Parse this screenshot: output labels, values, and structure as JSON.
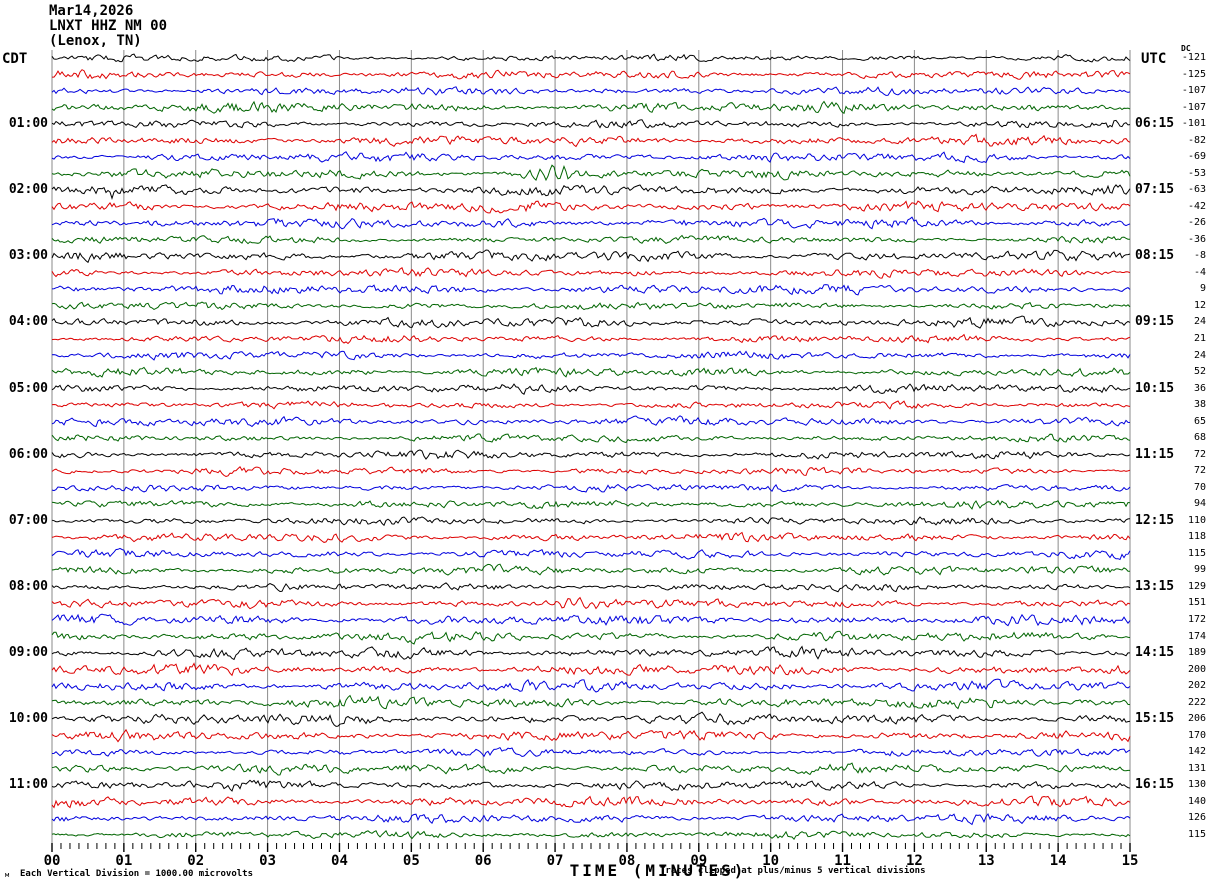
{
  "title": {
    "line1": "Mar14,2026",
    "line2": "LNXT HHZ NM 00",
    "line3": "(Lenox, TN)"
  },
  "left_axis": {
    "tz": "CDT",
    "hours": [
      "01:00",
      "02:00",
      "03:00",
      "04:00",
      "05:00",
      "06:00",
      "07:00",
      "08:00",
      "09:00",
      "10:00",
      "11:00"
    ]
  },
  "right_axis": {
    "tz": "UTC",
    "dc_header": "DC",
    "hours": [
      "06:15",
      "07:15",
      "08:15",
      "09:15",
      "10:15",
      "11:15",
      "12:15",
      "13:15",
      "14:15",
      "15:15",
      "16:15"
    ]
  },
  "x_axis": {
    "label": "TIME (MINUTES)",
    "ticks": [
      "00",
      "01",
      "02",
      "03",
      "04",
      "05",
      "06",
      "07",
      "08",
      "09",
      "10",
      "11",
      "12",
      "13",
      "14",
      "15"
    ]
  },
  "footer": {
    "mark": "м",
    "left": "Each Vertical Division = 1000.00 microvolts",
    "right": "Traces clipped at plus/minus 5 vertical divisions"
  },
  "colors": {
    "traces": [
      "#000000",
      "#dd0000",
      "#0000dd",
      "#006400"
    ],
    "grid": "#8a8a8a",
    "background": "#ffffff"
  },
  "chart_data": {
    "type": "line",
    "subtype": "seismogram-helicorder",
    "station": "LNXT HHZ NM 00",
    "location": "(Lenox, TN)",
    "date": "Mar14,2026",
    "rows": 48,
    "minutes_per_line": 15,
    "traces_per_hour": 4,
    "xlim": [
      0,
      15
    ],
    "trace_color_cycle": [
      "black",
      "red",
      "blue",
      "green"
    ],
    "left_hour_labels_cdt": [
      "01:00",
      "02:00",
      "03:00",
      "04:00",
      "05:00",
      "06:00",
      "07:00",
      "08:00",
      "09:00",
      "10:00",
      "11:00"
    ],
    "right_hour_labels_utc": [
      "06:15",
      "07:15",
      "08:15",
      "09:15",
      "10:15",
      "11:15",
      "12:15",
      "13:15",
      "14:15",
      "15:15",
      "16:15"
    ],
    "dc_offsets": [
      -121,
      -125,
      -107,
      -107,
      -101,
      -82,
      -69,
      -53,
      -63,
      -42,
      -26,
      -36,
      -8,
      -4,
      9,
      12,
      24,
      21,
      24,
      52,
      36,
      38,
      65,
      68,
      72,
      72,
      70,
      94,
      110,
      118,
      115,
      99,
      129,
      151,
      172,
      174,
      189,
      200,
      202,
      222,
      206,
      170,
      142,
      131,
      130,
      140,
      126,
      115
    ],
    "events": [
      {
        "row": 4,
        "minute": 14.7,
        "width_min": 0.25,
        "amplitude": 3.0,
        "note": "small black burst end of 01:00 line"
      },
      {
        "row": 7,
        "minute": 6.95,
        "width_min": 0.35,
        "amplitude": 7.5,
        "note": "largest burst, green 01:45 line"
      },
      {
        "row": 8,
        "minute": 0.85,
        "width_min": 0.06,
        "amplitude": 6.0,
        "note": "sharp spike, black 02:00 line"
      },
      {
        "row": 33,
        "minute": 7.3,
        "width_min": 0.6,
        "amplitude": 3.5,
        "note": "red wiggle burst 08:15 line"
      },
      {
        "row": 39,
        "minute": 13.1,
        "width_min": 0.06,
        "amplitude": 5.0,
        "note": "sharp green spike"
      }
    ],
    "scale_note": "Each Vertical Division = 1000.00 microvolts; Traces clipped at plus/minus 5 vertical divisions"
  }
}
